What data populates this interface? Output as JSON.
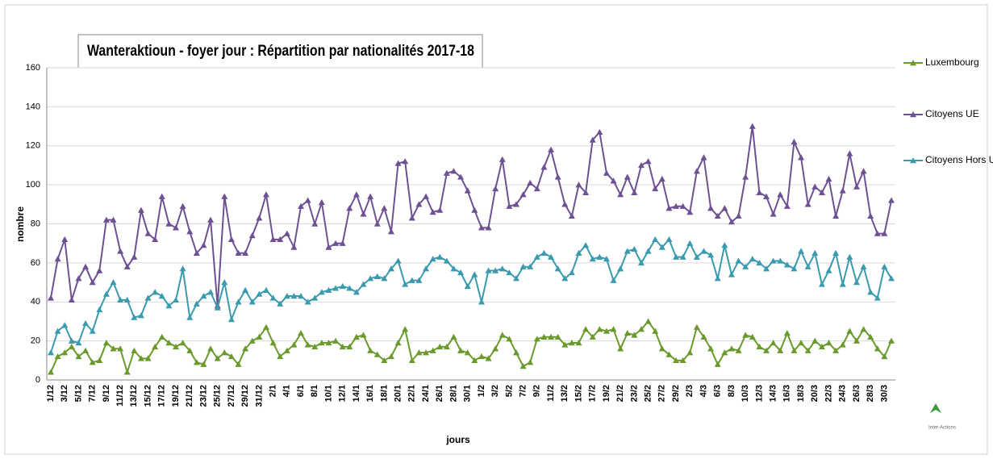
{
  "chart_data": {
    "type": "line",
    "title": "Wanteraktioun - foyer jour : Répartition par nationalités 2017-18",
    "x_label": "jours",
    "y_label": "nombre",
    "annotations": [
      "Inter-Actions"
    ],
    "ylim": [
      0,
      160
    ],
    "yticks": [
      0,
      20,
      40,
      60,
      80,
      100,
      120,
      140,
      160
    ],
    "grid": true,
    "legend": "right",
    "categories": [
      "1/12",
      null,
      "3/12",
      null,
      "5/12",
      null,
      "7/12",
      null,
      "9/12",
      null,
      "11/12",
      null,
      "13/12",
      null,
      "15/12",
      null,
      "17/12",
      null,
      "19/12",
      null,
      "21/12",
      null,
      "23/12",
      null,
      "25/12",
      null,
      "27/12",
      null,
      "29/12",
      null,
      "31/12",
      null,
      "2/1",
      null,
      "4/1",
      null,
      "6/1",
      null,
      "8/1",
      null,
      "10/1",
      null,
      "12/1",
      null,
      "14/1",
      null,
      "16/1",
      null,
      "18/1",
      null,
      "20/1",
      null,
      "22/1",
      null,
      "24/1",
      null,
      "26/1",
      null,
      "28/1",
      null,
      "30/1",
      null,
      "1/2",
      null,
      "3/2",
      null,
      "5/2",
      null,
      "7/2",
      null,
      "9/2",
      null,
      "11/2",
      null,
      "13/2",
      null,
      "15/2",
      null,
      "17/2",
      null,
      "19/2",
      null,
      "21/2",
      null,
      "23/2",
      null,
      "25/2",
      null,
      "27/2",
      null,
      "29/2",
      null,
      "2/3",
      null,
      "4/3",
      null,
      "6/3",
      null,
      "8/3",
      null,
      "10/3",
      null,
      "12/3",
      null,
      "14/3",
      null,
      "16/3",
      null,
      "18/3",
      null,
      "20/3",
      null,
      "22/3",
      null,
      "24/3",
      null,
      "26/3",
      null,
      "28/3",
      null,
      "30/3",
      null
    ],
    "series": [
      {
        "name": "Luxembourg",
        "color": "#6b9a2c",
        "values": [
          4,
          12,
          14,
          17,
          12,
          15,
          9,
          10,
          19,
          16,
          16,
          4,
          15,
          11,
          11,
          17,
          22,
          19,
          17,
          19,
          15,
          9,
          8,
          16,
          11,
          14,
          12,
          8,
          16,
          20,
          22,
          27,
          19,
          12,
          15,
          18,
          24,
          18,
          17,
          19,
          19,
          20,
          17,
          17,
          22,
          23,
          15,
          13,
          10,
          12,
          19,
          26,
          10,
          14,
          14,
          15,
          17,
          17,
          22,
          15,
          14,
          10,
          12,
          11,
          16,
          23,
          21,
          14,
          7,
          9,
          21,
          22,
          22,
          22,
          18,
          19,
          19,
          26,
          22,
          26,
          25,
          26,
          16,
          24,
          23,
          26,
          30,
          25,
          16,
          13,
          10,
          10,
          14,
          27,
          22,
          16,
          8,
          14,
          16,
          15,
          23,
          22,
          17,
          15,
          19,
          15,
          24,
          15,
          19,
          15,
          20,
          17,
          19,
          15,
          18,
          25,
          20,
          26,
          22,
          16,
          12,
          20
        ]
      },
      {
        "name": "Citoyens UE",
        "color": "#6e5193",
        "values": [
          42,
          62,
          72,
          41,
          52,
          58,
          50,
          56,
          82,
          82,
          66,
          58,
          63,
          87,
          75,
          72,
          94,
          80,
          78,
          89,
          76,
          65,
          69,
          82,
          38,
          94,
          72,
          65,
          65,
          74,
          83,
          95,
          72,
          72,
          75,
          68,
          89,
          92,
          80,
          91,
          68,
          70,
          70,
          88,
          95,
          85,
          94,
          80,
          88,
          76,
          111,
          112,
          83,
          90,
          94,
          86,
          87,
          106,
          107,
          104,
          97,
          87,
          78,
          78,
          98,
          113,
          89,
          90,
          95,
          101,
          98,
          109,
          118,
          104,
          90,
          84,
          100,
          96,
          123,
          127,
          106,
          102,
          95,
          104,
          96,
          110,
          112,
          98,
          103,
          88,
          89,
          89,
          86,
          107,
          114,
          88,
          84,
          88,
          81,
          84,
          104,
          130,
          96,
          94,
          85,
          95,
          89,
          122,
          114,
          90,
          99,
          96,
          103,
          84,
          97,
          116,
          99,
          107,
          84,
          75,
          75,
          92
        ]
      },
      {
        "name": "Citoyens Hors UE",
        "color": "#3a9aae",
        "values": [
          14,
          25,
          28,
          20,
          19,
          29,
          25,
          36,
          44,
          50,
          41,
          41,
          32,
          33,
          42,
          45,
          43,
          38,
          41,
          57,
          32,
          39,
          43,
          45,
          37,
          50,
          31,
          40,
          46,
          40,
          44,
          46,
          42,
          39,
          43,
          43,
          43,
          40,
          42,
          45,
          46,
          47,
          48,
          47,
          45,
          49,
          52,
          53,
          52,
          57,
          61,
          49,
          51,
          51,
          57,
          62,
          63,
          61,
          57,
          55,
          48,
          54,
          40,
          56,
          56,
          57,
          55,
          52,
          58,
          58,
          63,
          65,
          63,
          57,
          52,
          55,
          65,
          69,
          62,
          63,
          62,
          51,
          57,
          66,
          67,
          60,
          66,
          72,
          68,
          72,
          63,
          63,
          70,
          63,
          66,
          64,
          52,
          69,
          54,
          61,
          58,
          62,
          60,
          57,
          61,
          61,
          59,
          57,
          66,
          58,
          65,
          49,
          56,
          65,
          49,
          63,
          50,
          58,
          45,
          42,
          58,
          52
        ]
      }
    ]
  }
}
